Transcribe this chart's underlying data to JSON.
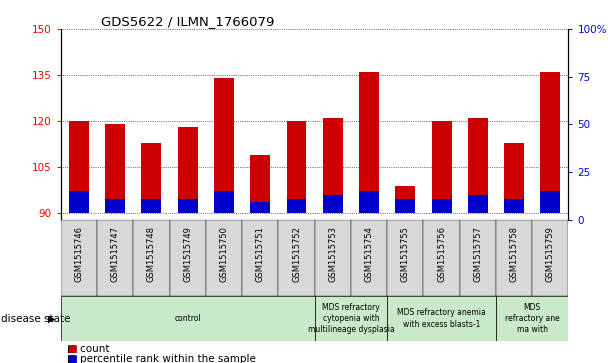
{
  "title": "GDS5622 / ILMN_1766079",
  "samples": [
    "GSM1515746",
    "GSM1515747",
    "GSM1515748",
    "GSM1515749",
    "GSM1515750",
    "GSM1515751",
    "GSM1515752",
    "GSM1515753",
    "GSM1515754",
    "GSM1515755",
    "GSM1515756",
    "GSM1515757",
    "GSM1515758",
    "GSM1515759"
  ],
  "counts": [
    120,
    119,
    113,
    118,
    134,
    109,
    120,
    121,
    136,
    99,
    120,
    121,
    113,
    136
  ],
  "percentile_ranks_pct": [
    12,
    8,
    8,
    8,
    12,
    6,
    8,
    10,
    12,
    8,
    8,
    10,
    8,
    12
  ],
  "base": 90,
  "ylim_left": [
    88,
    150
  ],
  "ylim_right": [
    0,
    100
  ],
  "yticks_left": [
    90,
    105,
    120,
    135,
    150
  ],
  "yticks_right": [
    0,
    25,
    50,
    75,
    100
  ],
  "bar_color": "#cc0000",
  "percentile_color": "#0000cc",
  "sample_bg_color": "#d8d8d8",
  "disease_groups": [
    {
      "label": "control",
      "start": 0,
      "end": 7
    },
    {
      "label": "MDS refractory\ncytopenia with\nmultilineage dysplasia",
      "start": 7,
      "end": 9
    },
    {
      "label": "MDS refractory anemia\nwith excess blasts-1",
      "start": 9,
      "end": 12
    },
    {
      "label": "MDS\nrefractory ane\nma with",
      "start": 12,
      "end": 14
    }
  ],
  "disease_bg_color": "#c8eac8",
  "legend_count_label": "count",
  "legend_pct_label": "percentile rank within the sample",
  "disease_state_label": "disease state"
}
